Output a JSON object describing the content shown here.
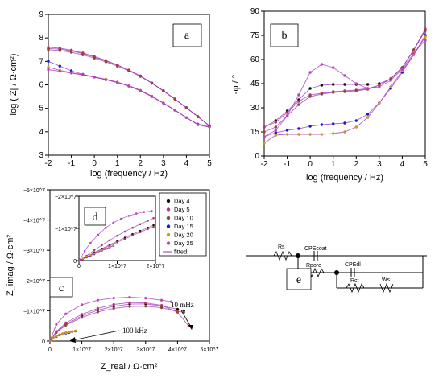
{
  "panels": {
    "a": {
      "label": "a"
    },
    "b": {
      "label": "b"
    },
    "c": {
      "label": "c"
    },
    "d": {
      "label": "d"
    },
    "e": {
      "label": "e"
    }
  },
  "legend": {
    "entries": [
      "Day 4",
      "Day 5",
      "Day 10",
      "Day 15",
      "Day 20",
      "Day 25"
    ],
    "fitted_label": "fitted",
    "colors": [
      "#111111",
      "#c0306a",
      "#8b4a2b",
      "#1a1ad0",
      "#c99a18",
      "#c040c0"
    ],
    "fit_color": "#9b30b0"
  },
  "chart_data": [
    {
      "type": "line",
      "panel": "a",
      "xlabel": "log (frequency / Hz)",
      "ylabel": "log (|Z| / Ω·cm²)",
      "xlim": [
        -2,
        5
      ],
      "ylim": [
        3,
        9
      ],
      "xticks": [
        "-2",
        "-1",
        "0",
        "1",
        "2",
        "3",
        "4",
        "5"
      ],
      "yticks": [
        "3",
        "4",
        "5",
        "6",
        "7",
        "8",
        "9"
      ],
      "x": [
        -2,
        -1.5,
        -1,
        -0.5,
        0,
        0.5,
        1,
        1.5,
        2,
        2.5,
        3,
        3.5,
        4,
        4.5,
        5
      ],
      "series": [
        {
          "name": "Day 4",
          "values": [
            7.55,
            7.52,
            7.45,
            7.33,
            7.18,
            7.02,
            6.84,
            6.63,
            6.38,
            6.08,
            5.75,
            5.4,
            5.03,
            4.65,
            4.25
          ]
        },
        {
          "name": "Day 5",
          "values": [
            7.6,
            7.56,
            7.48,
            7.36,
            7.21,
            7.04,
            6.85,
            6.63,
            6.37,
            6.07,
            5.74,
            5.39,
            5.02,
            4.64,
            4.25
          ]
        },
        {
          "name": "Day 10",
          "values": [
            7.5,
            7.46,
            7.39,
            7.28,
            7.14,
            6.98,
            6.8,
            6.6,
            6.36,
            6.07,
            5.74,
            5.39,
            5.02,
            4.64,
            4.25
          ]
        },
        {
          "name": "Day 15",
          "values": [
            7.0,
            6.8,
            6.6,
            6.45,
            6.33,
            6.22,
            6.1,
            5.95,
            5.75,
            5.5,
            5.22,
            4.92,
            4.6,
            4.32,
            4.25
          ]
        },
        {
          "name": "Day 20",
          "values": [
            6.75,
            6.62,
            6.52,
            6.43,
            6.34,
            6.24,
            6.12,
            5.97,
            5.77,
            5.52,
            5.23,
            4.93,
            4.6,
            4.3,
            4.2
          ]
        },
        {
          "name": "Day 25",
          "values": [
            6.65,
            6.58,
            6.5,
            6.42,
            6.33,
            6.22,
            6.1,
            5.95,
            5.75,
            5.5,
            5.22,
            4.92,
            4.6,
            4.3,
            4.2
          ]
        }
      ]
    },
    {
      "type": "line",
      "panel": "b",
      "xlabel": "log (frequency / Hz)",
      "ylabel": "-φ / °",
      "xlim": [
        -2,
        5
      ],
      "ylim": [
        0,
        90
      ],
      "xticks": [
        "-2",
        "-1",
        "0",
        "1",
        "2",
        "3",
        "4",
        "5"
      ],
      "yticks": [
        "0",
        "15",
        "30",
        "45",
        "60",
        "75",
        "90"
      ],
      "x": [
        -2,
        -1.5,
        -1,
        -0.5,
        0,
        0.5,
        1,
        1.5,
        2,
        2.5,
        3,
        3.5,
        4,
        4.5,
        5
      ],
      "series": [
        {
          "name": "Day 4",
          "values": [
            18,
            22,
            28,
            35,
            42,
            44,
            44.5,
            44.5,
            44.5,
            44.5,
            45,
            48,
            55,
            66,
            78
          ]
        },
        {
          "name": "Day 5",
          "values": [
            18,
            21,
            27,
            34,
            38,
            39,
            40,
            40.5,
            41,
            42,
            44,
            48,
            55,
            66,
            79
          ]
        },
        {
          "name": "Day 10",
          "values": [
            15,
            18,
            25,
            32,
            37,
            38.5,
            39.5,
            40,
            40.5,
            41.5,
            44,
            48,
            55,
            66,
            78
          ]
        },
        {
          "name": "Day 15",
          "values": [
            12,
            14.5,
            16,
            17,
            18.5,
            19.5,
            20,
            20.5,
            22,
            26,
            33,
            42,
            52,
            63,
            75
          ]
        },
        {
          "name": "Day 20",
          "values": [
            8,
            13,
            13.5,
            13.5,
            13.5,
            13.5,
            14,
            15,
            18,
            24,
            33,
            43,
            53,
            63,
            74
          ]
        },
        {
          "name": "Day 25",
          "values": [
            12,
            16,
            25,
            38,
            52,
            57,
            55,
            50,
            45,
            42,
            43,
            47,
            54,
            64,
            72
          ]
        }
      ]
    },
    {
      "type": "scatter",
      "panel": "c",
      "xlabel": "Z_real / Ω·cm²",
      "ylabel": "Z_imag / Ω·cm²",
      "xlim": [
        0,
        50000000
      ],
      "ylim": [
        0,
        -50000000
      ],
      "xticks": [
        "0",
        "1×10^7",
        "2×10^7",
        "3×10^7",
        "4×10^7",
        "5×10^7"
      ],
      "yticks": [
        "0",
        "−1×10^7",
        "−2×10^7",
        "−3×10^7",
        "−4×10^7",
        "−5×10^7"
      ],
      "annotations": [
        "10 mHz",
        "100 kHz"
      ],
      "series": [
        {
          "name": "Day 4",
          "x": [
            0.2,
            2,
            5,
            10,
            15,
            20,
            25,
            30,
            35,
            40,
            42
          ],
          "y": [
            -0.3,
            -3,
            -5.5,
            -8.3,
            -10.2,
            -11.5,
            -12.2,
            -12.3,
            -11.6,
            -10.5,
            -10
          ]
        },
        {
          "name": "Day 5",
          "x": [
            0.2,
            2,
            5,
            10,
            15,
            20,
            25,
            30,
            35,
            40,
            43.5
          ],
          "y": [
            -0.3,
            -3.2,
            -6,
            -8.8,
            -10.8,
            -12.1,
            -12.7,
            -12.6,
            -11.8,
            -9.5,
            -5
          ]
        },
        {
          "name": "Day 10",
          "x": [
            0.2,
            2,
            5,
            10,
            15,
            20,
            25,
            30,
            35,
            40,
            42
          ],
          "y": [
            -0.3,
            -2.8,
            -5.2,
            -7.8,
            -9.6,
            -10.8,
            -11.4,
            -11.5,
            -11,
            -9.8,
            -9.5
          ]
        },
        {
          "name": "Day 15",
          "x": [
            0.1,
            0.5,
            1,
            2,
            3,
            4,
            5,
            6,
            7,
            8
          ],
          "y": [
            -0.2,
            -0.7,
            -1,
            -1.5,
            -2,
            -2.3,
            -2.6,
            -2.8,
            -3.1,
            -3.3
          ]
        },
        {
          "name": "Day 20",
          "x": [
            0.1,
            0.5,
            1,
            2,
            3,
            4,
            5,
            6,
            7,
            8
          ],
          "y": [
            -0.2,
            -0.8,
            -1.1,
            -1.7,
            -2.1,
            -2.5,
            -2.8,
            -3,
            -3.2,
            -3.4
          ]
        },
        {
          "name": "Day 25",
          "x": [
            0.2,
            2,
            5,
            10,
            15,
            20,
            25,
            30,
            35,
            38
          ],
          "y": [
            -0.6,
            -5.5,
            -9,
            -12,
            -13.5,
            -14.2,
            -14.5,
            -14.2,
            -13.5,
            -13
          ]
        }
      ]
    },
    {
      "type": "scatter",
      "panel": "d",
      "xlim": [
        0,
        20000000
      ],
      "ylim": [
        0,
        -20000000
      ],
      "xticks": [
        "0",
        "1×10^7",
        "2×10^7"
      ],
      "yticks": [
        "0",
        "−1×10^7",
        "−2×10^7"
      ],
      "series": [
        {
          "name": "Day 4",
          "x": [
            0.5,
            2,
            4,
            6,
            8,
            10,
            12,
            14,
            16,
            18,
            19.5
          ],
          "y": [
            -0.2,
            -1.2,
            -2.5,
            -3.7,
            -4.9,
            -6,
            -7.1,
            -8.2,
            -9.2,
            -10.2,
            -11
          ]
        },
        {
          "name": "Day 5",
          "x": [
            0.5,
            2,
            4,
            6,
            8,
            10,
            12,
            14,
            16,
            18,
            19.5
          ],
          "y": [
            -0.2,
            -1.5,
            -3.2,
            -4.8,
            -6.3,
            -7.7,
            -9,
            -10.2,
            -11.3,
            -12.4,
            -13.2
          ]
        },
        {
          "name": "Day 10",
          "x": [
            0.5,
            2,
            4,
            6,
            8,
            10,
            12,
            14,
            16,
            18,
            19.5
          ],
          "y": [
            -0.2,
            -1.1,
            -2.3,
            -3.5,
            -4.6,
            -5.7,
            -6.7,
            -7.8,
            -8.8,
            -9.8,
            -10.5
          ]
        },
        {
          "name": "Day 15",
          "x": [
            0.2,
            1,
            2,
            3,
            4,
            5,
            6,
            7,
            8,
            9
          ],
          "y": [
            -0.1,
            -0.5,
            -1,
            -1.5,
            -2,
            -2.6,
            -3.1,
            -3.6,
            -4.1,
            -4.6
          ]
        },
        {
          "name": "Day 20",
          "x": [
            0.2,
            1,
            2,
            3,
            4,
            5,
            6,
            7,
            8,
            9
          ],
          "y": [
            -0.1,
            -0.6,
            -1.2,
            -1.7,
            -2.2,
            -2.7,
            -3.2,
            -3.7,
            -4.2,
            -4.7
          ]
        },
        {
          "name": "Day 25",
          "x": [
            0.3,
            1.5,
            3,
            5,
            7,
            9,
            11,
            13,
            15,
            17,
            19
          ],
          "y": [
            -0.3,
            -3,
            -5.5,
            -8,
            -10.2,
            -11.8,
            -13,
            -13.9,
            -14.6,
            -15.1,
            -15.4
          ]
        }
      ]
    }
  ],
  "circuit": {
    "labels": [
      "Rs",
      "CPEcoat",
      "Rpore",
      "CPEdl",
      "Rct",
      "Ws"
    ]
  }
}
